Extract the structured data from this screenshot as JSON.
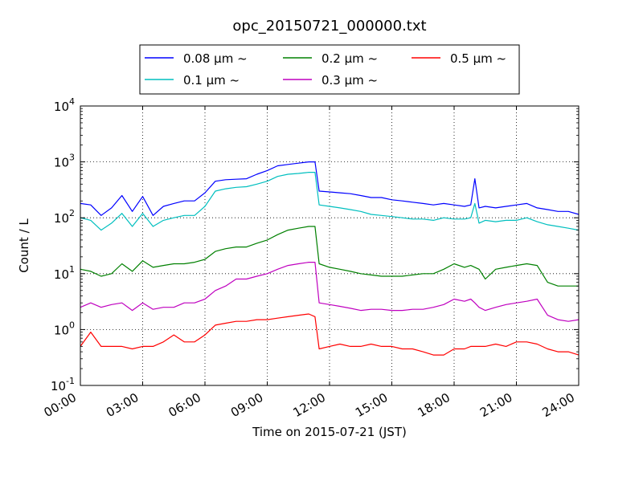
{
  "chart_data": {
    "type": "line",
    "title": "opc_20150721_000000.txt",
    "xlabel": "Time on 2015-07-21 (JST)",
    "ylabel": "Count / L",
    "yscale": "log",
    "ylim": [
      0.1,
      10000
    ],
    "xlim": [
      "00:00",
      "24:00"
    ],
    "x_ticks": [
      "00:00",
      "03:00",
      "06:00",
      "09:00",
      "12:00",
      "15:00",
      "18:00",
      "21:00",
      "24:00"
    ],
    "y_ticks": [
      {
        "base": "10",
        "exp": "-1"
      },
      {
        "base": "10",
        "exp": "0"
      },
      {
        "base": "10",
        "exp": "1"
      },
      {
        "base": "10",
        "exp": "2"
      },
      {
        "base": "10",
        "exp": "3"
      },
      {
        "base": "10",
        "exp": "4"
      }
    ],
    "grid": true,
    "legend_position": "top",
    "hours": [
      0,
      0.5,
      1,
      1.5,
      2,
      2.5,
      3,
      3.5,
      4,
      4.5,
      5,
      5.5,
      6,
      6.5,
      7,
      7.5,
      8,
      8.5,
      9,
      9.5,
      10,
      10.5,
      11,
      11.3,
      11.5,
      12,
      12.5,
      13,
      13.5,
      14,
      14.5,
      15,
      15.5,
      16,
      16.5,
      17,
      17.5,
      18,
      18.5,
      18.8,
      19,
      19.2,
      19.5,
      20,
      20.5,
      21,
      21.5,
      22,
      22.5,
      23,
      23.5,
      24
    ],
    "series": [
      {
        "name": "0.08 μm ~",
        "color": "#0000ff",
        "values": [
          180,
          170,
          110,
          150,
          250,
          130,
          240,
          110,
          160,
          180,
          200,
          200,
          280,
          450,
          480,
          490,
          500,
          600,
          700,
          850,
          900,
          950,
          1000,
          1000,
          300,
          290,
          280,
          270,
          250,
          230,
          230,
          210,
          200,
          190,
          180,
          170,
          180,
          170,
          160,
          170,
          500,
          150,
          160,
          150,
          160,
          170,
          180,
          150,
          140,
          130,
          130,
          115
        ]
      },
      {
        "name": "0.1 μm ~",
        "color": "#00bfbf",
        "values": [
          100,
          90,
          60,
          80,
          120,
          70,
          120,
          70,
          90,
          100,
          110,
          110,
          160,
          300,
          330,
          350,
          360,
          400,
          450,
          550,
          600,
          620,
          650,
          650,
          170,
          160,
          150,
          140,
          130,
          115,
          110,
          105,
          100,
          95,
          95,
          90,
          100,
          95,
          95,
          100,
          180,
          80,
          90,
          85,
          90,
          90,
          100,
          85,
          75,
          70,
          65,
          60
        ]
      },
      {
        "name": "0.2 μm ~",
        "color": "#008000",
        "values": [
          12,
          11,
          9,
          10,
          15,
          11,
          17,
          13,
          14,
          15,
          15,
          16,
          18,
          25,
          28,
          30,
          30,
          35,
          40,
          50,
          60,
          65,
          70,
          70,
          15,
          13,
          12,
          11,
          10,
          9.5,
          9,
          9,
          9,
          9.5,
          10,
          10,
          12,
          15,
          13,
          14,
          13,
          12,
          8,
          12,
          13,
          14,
          15,
          14,
          7,
          6,
          6,
          6
        ]
      },
      {
        "name": "0.3 μm ~",
        "color": "#bf00bf",
        "values": [
          2.5,
          3,
          2.5,
          2.8,
          3,
          2.2,
          3,
          2.3,
          2.5,
          2.5,
          3,
          3,
          3.5,
          5,
          6,
          8,
          8,
          9,
          10,
          12,
          14,
          15,
          16,
          16,
          3,
          2.8,
          2.6,
          2.4,
          2.2,
          2.3,
          2.3,
          2.2,
          2.2,
          2.3,
          2.3,
          2.5,
          2.8,
          3.5,
          3.2,
          3.5,
          3,
          2.5,
          2.2,
          2.5,
          2.8,
          3,
          3.2,
          3.5,
          1.8,
          1.5,
          1.4,
          1.5
        ]
      },
      {
        "name": "0.5 μm ~",
        "color": "#ff0000",
        "values": [
          0.5,
          0.9,
          0.5,
          0.5,
          0.5,
          0.45,
          0.5,
          0.5,
          0.6,
          0.8,
          0.6,
          0.6,
          0.8,
          1.2,
          1.3,
          1.4,
          1.4,
          1.5,
          1.5,
          1.6,
          1.7,
          1.8,
          1.9,
          1.7,
          0.45,
          0.5,
          0.55,
          0.5,
          0.5,
          0.55,
          0.5,
          0.5,
          0.45,
          0.45,
          0.4,
          0.35,
          0.35,
          0.45,
          0.45,
          0.5,
          0.5,
          0.5,
          0.5,
          0.55,
          0.5,
          0.6,
          0.6,
          0.55,
          0.45,
          0.4,
          0.4,
          0.35
        ]
      }
    ]
  }
}
